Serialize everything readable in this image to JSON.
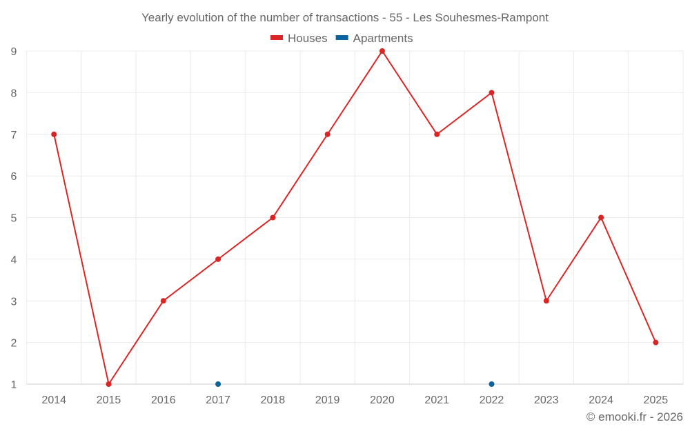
{
  "chart_data": {
    "type": "line",
    "title": "Yearly evolution of the number of transactions - 55 - Les Souhesmes-Rampont",
    "categories": [
      "2014",
      "2015",
      "2016",
      "2017",
      "2018",
      "2019",
      "2020",
      "2021",
      "2022",
      "2023",
      "2024",
      "2025"
    ],
    "yticks": [
      "1",
      "2",
      "3",
      "4",
      "5",
      "6",
      "7",
      "8",
      "9"
    ],
    "ylim": [
      1,
      9
    ],
    "grid": true,
    "legend_position": "top-center",
    "series": [
      {
        "name": "Houses",
        "color": "#dd2424",
        "values": [
          7,
          1,
          3,
          4,
          5,
          7,
          9,
          7,
          8,
          3,
          5,
          2
        ]
      },
      {
        "name": "Apartments",
        "color": "#0a64a0",
        "values": [
          null,
          null,
          null,
          1,
          null,
          null,
          null,
          null,
          1,
          null,
          null,
          null
        ]
      }
    ],
    "credit": "© emooki.fr - 2026"
  }
}
